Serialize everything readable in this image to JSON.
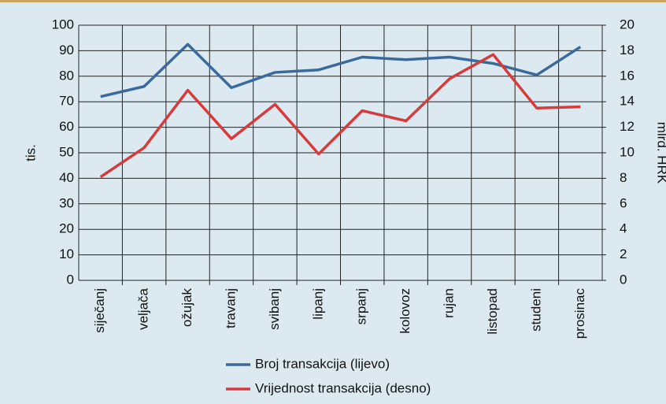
{
  "chart_data": {
    "type": "line",
    "categories": [
      "siječanj",
      "veljača",
      "ožujak",
      "travanj",
      "svibanj",
      "lipanj",
      "srpanj",
      "kolovoz",
      "rujan",
      "listopad",
      "studeni",
      "prosinac"
    ],
    "series": [
      {
        "name": "Broj transakcija (lijevo)",
        "color": "#3a6a9c",
        "values": [
          72,
          76,
          92.5,
          75.5,
          81.5,
          82.5,
          87.5,
          86.5,
          87.5,
          85,
          80.5,
          91.5
        ]
      },
      {
        "name": "Vrijednost transakcija (desno)",
        "color": "#d63b3b",
        "axis": "y2",
        "values": [
          8.1,
          10.4,
          14.9,
          11.1,
          13.8,
          9.9,
          13.3,
          12.5,
          15.8,
          17.7,
          13.5,
          13.6
        ]
      }
    ],
    "ylabel": "tis.",
    "y2label": "mlrd. HRK",
    "ylim": [
      0,
      100
    ],
    "yticks": [
      0,
      10,
      20,
      30,
      40,
      50,
      60,
      70,
      80,
      90,
      100
    ],
    "y2lim": [
      0,
      20
    ],
    "y2ticks": [
      0,
      2,
      4,
      6,
      8,
      10,
      12,
      14,
      16,
      18,
      20
    ],
    "grid": true
  }
}
